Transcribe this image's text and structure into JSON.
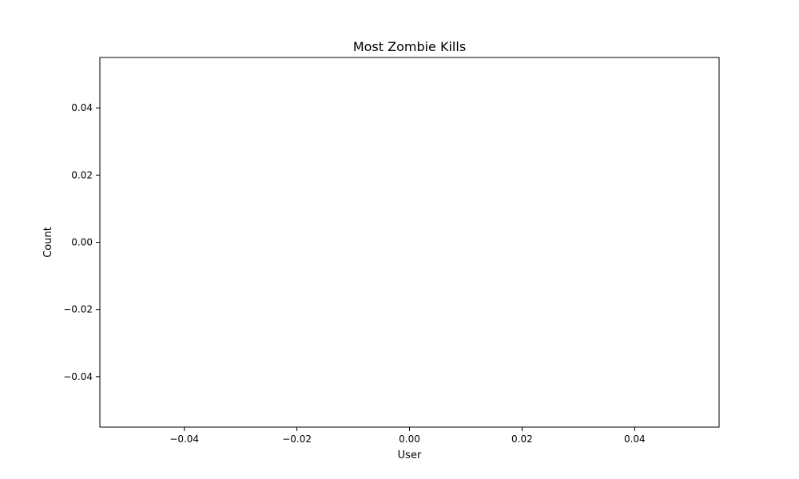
{
  "chart_data": {
    "type": "bar",
    "title": "Most Zombie Kills",
    "xlabel": "User",
    "ylabel": "Count",
    "categories": [],
    "values": [],
    "xlim": [
      -0.055,
      0.055
    ],
    "ylim": [
      -0.055,
      0.055
    ],
    "x_ticks": [
      "−0.04",
      "−0.02",
      "0.00",
      "0.02",
      "0.04"
    ],
    "x_tick_values": [
      -0.04,
      -0.02,
      0.0,
      0.02,
      0.04
    ],
    "y_ticks": [
      "0.04",
      "0.02",
      "0.00",
      "−0.02",
      "−0.04"
    ],
    "y_tick_values": [
      0.04,
      0.02,
      0.0,
      -0.02,
      -0.04
    ],
    "grid": false
  }
}
